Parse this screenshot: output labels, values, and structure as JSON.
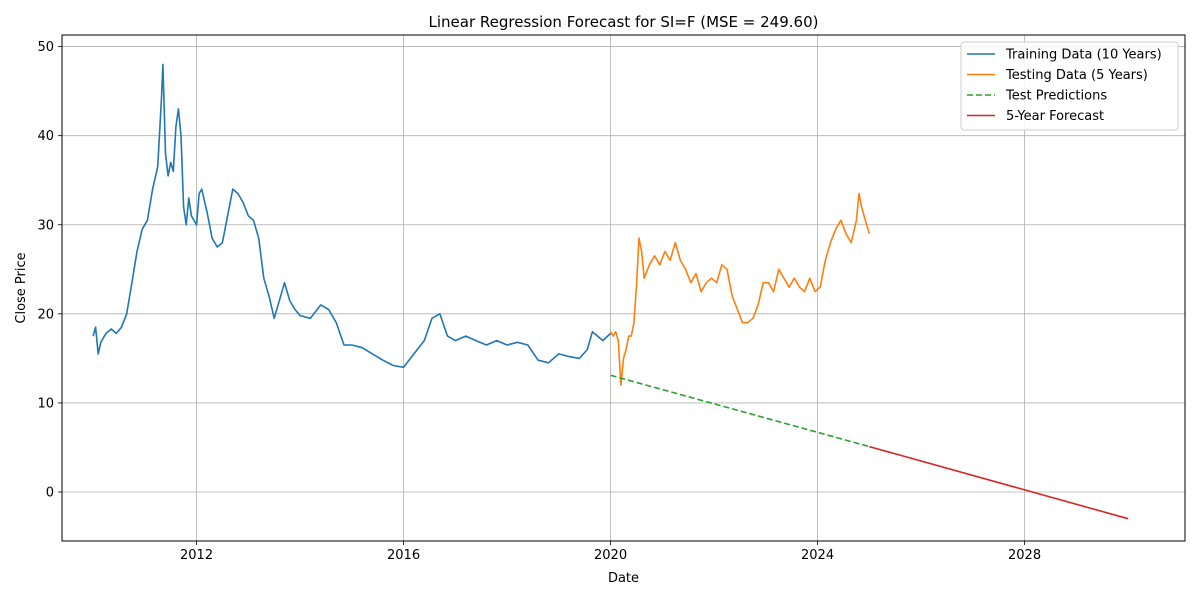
{
  "chart_data": {
    "type": "line",
    "title": "Linear Regression Forecast for SI=F (MSE = 249.60)",
    "xlabel": "Date",
    "ylabel": "Close Price",
    "xlim": [
      2009.4,
      2031.1
    ],
    "ylim": [
      -5.5,
      51.3
    ],
    "x_ticks": [
      2012,
      2016,
      2020,
      2024,
      2028
    ],
    "y_ticks": [
      0,
      10,
      20,
      30,
      40,
      50
    ],
    "grid": true,
    "legend_position": "upper right",
    "colors": {
      "training": "#1f77b4",
      "testing": "#ff7f0e",
      "predictions": "#2ca02c",
      "forecast": "#d62728",
      "grid": "#b0b0b0"
    },
    "series": [
      {
        "name": "Training Data (10 Years)",
        "style": "solid",
        "color": "#1f77b4",
        "x": [
          2010.0,
          2010.05,
          2010.1,
          2010.15,
          2010.25,
          2010.35,
          2010.45,
          2010.55,
          2010.65,
          2010.75,
          2010.85,
          2010.95,
          2011.05,
          2011.15,
          2011.25,
          2011.32,
          2011.35,
          2011.4,
          2011.45,
          2011.5,
          2011.55,
          2011.6,
          2011.65,
          2011.7,
          2011.75,
          2011.8,
          2011.85,
          2011.9,
          2012.0,
          2012.05,
          2012.1,
          2012.2,
          2012.3,
          2012.4,
          2012.5,
          2012.6,
          2012.7,
          2012.8,
          2012.9,
          2013.0,
          2013.1,
          2013.2,
          2013.3,
          2013.4,
          2013.5,
          2013.6,
          2013.7,
          2013.8,
          2013.9,
          2014.0,
          2014.2,
          2014.4,
          2014.55,
          2014.7,
          2014.85,
          2015.0,
          2015.2,
          2015.4,
          2015.6,
          2015.8,
          2016.0,
          2016.2,
          2016.4,
          2016.55,
          2016.7,
          2016.85,
          2017.0,
          2017.2,
          2017.4,
          2017.6,
          2017.8,
          2018.0,
          2018.2,
          2018.4,
          2018.6,
          2018.8,
          2019.0,
          2019.2,
          2019.4,
          2019.55,
          2019.65,
          2019.75,
          2019.85,
          2020.0
        ],
        "y": [
          17.5,
          18.5,
          15.5,
          16.8,
          17.8,
          18.3,
          17.8,
          18.5,
          20.0,
          23.5,
          27.0,
          29.5,
          30.5,
          34.0,
          36.5,
          44.0,
          48.0,
          38.0,
          35.5,
          37.0,
          36.0,
          41.0,
          43.0,
          40.0,
          32.0,
          30.0,
          33.0,
          31.0,
          30.0,
          33.5,
          34.0,
          31.5,
          28.5,
          27.5,
          28.0,
          31.0,
          34.0,
          33.5,
          32.5,
          31.0,
          30.5,
          28.5,
          24.0,
          22.0,
          19.5,
          21.5,
          23.5,
          21.5,
          20.5,
          19.8,
          19.5,
          21.0,
          20.5,
          19.0,
          16.5,
          16.5,
          16.2,
          15.5,
          14.8,
          14.2,
          14.0,
          15.5,
          17.0,
          19.5,
          20.0,
          17.5,
          17.0,
          17.5,
          17.0,
          16.5,
          17.0,
          16.5,
          16.8,
          16.5,
          14.8,
          14.5,
          15.5,
          15.2,
          15.0,
          16.0,
          18.0,
          17.5,
          17.0,
          17.8
        ]
      },
      {
        "name": "Testing Data (5 Years)",
        "style": "solid",
        "color": "#ff7f0e",
        "x": [
          2020.0,
          2020.05,
          2020.1,
          2020.15,
          2020.2,
          2020.25,
          2020.3,
          2020.35,
          2020.4,
          2020.45,
          2020.5,
          2020.55,
          2020.6,
          2020.65,
          2020.75,
          2020.85,
          2020.95,
          2021.05,
          2021.15,
          2021.25,
          2021.35,
          2021.45,
          2021.55,
          2021.65,
          2021.75,
          2021.85,
          2021.95,
          2022.05,
          2022.15,
          2022.25,
          2022.35,
          2022.45,
          2022.55,
          2022.65,
          2022.75,
          2022.85,
          2022.95,
          2023.05,
          2023.15,
          2023.25,
          2023.35,
          2023.45,
          2023.55,
          2023.65,
          2023.75,
          2023.85,
          2023.95,
          2024.05,
          2024.15,
          2024.25,
          2024.35,
          2024.45,
          2024.55,
          2024.65,
          2024.75,
          2024.8,
          2024.85,
          2024.9,
          2024.95,
          2025.0
        ],
        "y": [
          18.0,
          17.5,
          18.0,
          17.0,
          12.0,
          15.0,
          16.0,
          17.5,
          17.5,
          19.0,
          23.0,
          28.5,
          27.0,
          24.0,
          25.5,
          26.5,
          25.5,
          27.0,
          26.0,
          28.0,
          26.0,
          25.0,
          23.5,
          24.5,
          22.5,
          23.5,
          24.0,
          23.5,
          25.5,
          25.0,
          22.0,
          20.5,
          19.0,
          19.0,
          19.5,
          21.0,
          23.5,
          23.5,
          22.5,
          25.0,
          24.0,
          23.0,
          24.0,
          23.0,
          22.5,
          24.0,
          22.5,
          23.0,
          26.0,
          28.0,
          29.5,
          30.5,
          29.0,
          28.0,
          30.5,
          33.5,
          32.0,
          31.0,
          30.0,
          29.0
        ]
      },
      {
        "name": "Test Predictions",
        "style": "dashed",
        "color": "#2ca02c",
        "x": [
          2020.0,
          2025.0
        ],
        "y": [
          13.1,
          5.1
        ]
      },
      {
        "name": "5-Year Forecast",
        "style": "solid",
        "color": "#d62728",
        "x": [
          2025.0,
          2030.0
        ],
        "y": [
          5.1,
          -3.0
        ]
      }
    ]
  }
}
